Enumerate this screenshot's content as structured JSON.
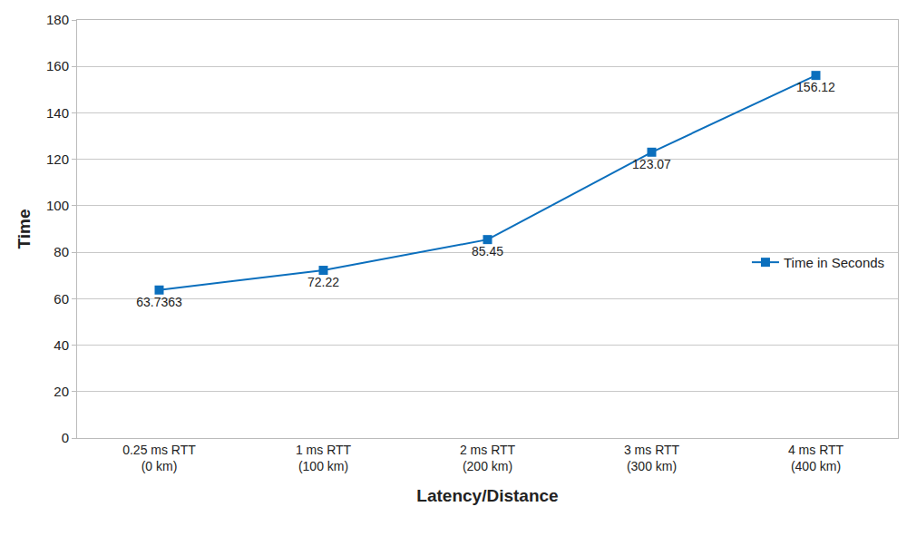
{
  "chart_data": {
    "type": "line",
    "x_label": "Latency/Distance",
    "y_label": "Time",
    "categories": [
      "0.25 ms RTT\n(0 km)",
      "1 ms RTT\n(100 km)",
      "2 ms RTT\n(200 km)",
      "3 ms RTT\n(300 km)",
      "4 ms RTT\n(400 km)"
    ],
    "series": [
      {
        "name": "Time in Seconds",
        "color": "#0b6fbd",
        "marker": "square",
        "values": [
          63.7363,
          72.22,
          85.45,
          123.07,
          156.12
        ]
      }
    ],
    "ylim": [
      0,
      180
    ],
    "yticks": [
      0,
      20,
      40,
      60,
      80,
      100,
      120,
      140,
      160,
      180
    ],
    "grid": true,
    "legend": "right",
    "data_labels": true
  }
}
